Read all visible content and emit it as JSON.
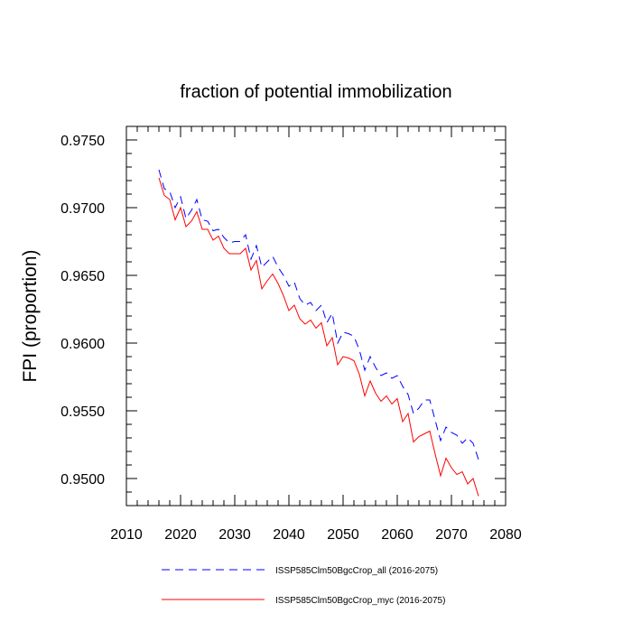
{
  "chart_data": {
    "type": "line",
    "title": "fraction of potential immobilization",
    "xlabel": "",
    "ylabel": "FPI  (proportion)",
    "xlim": [
      2010,
      2080
    ],
    "ylim": [
      0.948,
      0.976
    ],
    "xticks": [
      2010,
      2020,
      2030,
      2040,
      2050,
      2060,
      2070,
      2080
    ],
    "xtick_labels": [
      "2010",
      "2020",
      "2030",
      "2040",
      "2050",
      "2060",
      "2070",
      "2080"
    ],
    "yticks": [
      0.95,
      0.955,
      0.96,
      0.965,
      0.97,
      0.975
    ],
    "ytick_labels": [
      "0.9500",
      "0.9550",
      "0.9600",
      "0.9650",
      "0.9700",
      "0.9750"
    ],
    "grid": false,
    "legend_position": "bottom",
    "x": [
      2016,
      2017,
      2018,
      2019,
      2020,
      2021,
      2022,
      2023,
      2024,
      2025,
      2026,
      2027,
      2028,
      2029,
      2030,
      2031,
      2032,
      2033,
      2034,
      2035,
      2036,
      2037,
      2038,
      2039,
      2040,
      2041,
      2042,
      2043,
      2044,
      2045,
      2046,
      2047,
      2048,
      2049,
      2050,
      2051,
      2052,
      2053,
      2054,
      2055,
      2056,
      2057,
      2058,
      2059,
      2060,
      2061,
      2062,
      2063,
      2064,
      2065,
      2066,
      2067,
      2068,
      2069,
      2070,
      2071,
      2072,
      2073,
      2074,
      2075
    ],
    "series": [
      {
        "name": "ISSP585Clm50BgcCrop_all (2016-2075)",
        "color": "#0000ff",
        "dash": "dashed",
        "values": [
          0.9728,
          0.9714,
          0.9712,
          0.97,
          0.9708,
          0.9692,
          0.9698,
          0.9706,
          0.9691,
          0.969,
          0.9683,
          0.9684,
          0.9678,
          0.9674,
          0.9675,
          0.9675,
          0.968,
          0.9662,
          0.9672,
          0.9656,
          0.966,
          0.9664,
          0.9656,
          0.965,
          0.9642,
          0.9645,
          0.9633,
          0.9628,
          0.963,
          0.9624,
          0.9628,
          0.9615,
          0.9622,
          0.96,
          0.9608,
          0.9607,
          0.9605,
          0.9595,
          0.958,
          0.959,
          0.9582,
          0.9576,
          0.9578,
          0.9574,
          0.9576,
          0.9568,
          0.9562,
          0.9548,
          0.9552,
          0.9558,
          0.9558,
          0.9543,
          0.9528,
          0.9538,
          0.9534,
          0.9532,
          0.9526,
          0.953,
          0.9526,
          0.9514
        ]
      },
      {
        "name": "ISSP585Clm50BgcCrop_myc (2016-2075)",
        "color": "#ff0000",
        "dash": "solid",
        "values": [
          0.9722,
          0.9709,
          0.9706,
          0.9691,
          0.97,
          0.9686,
          0.969,
          0.9697,
          0.9684,
          0.9684,
          0.9676,
          0.9679,
          0.967,
          0.9666,
          0.9666,
          0.9666,
          0.967,
          0.9654,
          0.9661,
          0.964,
          0.9646,
          0.9651,
          0.9644,
          0.9635,
          0.9624,
          0.9628,
          0.9618,
          0.9614,
          0.9617,
          0.9611,
          0.9615,
          0.9598,
          0.9604,
          0.9584,
          0.959,
          0.9589,
          0.9587,
          0.9577,
          0.9561,
          0.9572,
          0.9563,
          0.9557,
          0.9561,
          0.9555,
          0.9559,
          0.9542,
          0.9548,
          0.9527,
          0.9531,
          0.9533,
          0.9535,
          0.9518,
          0.9502,
          0.9515,
          0.9508,
          0.9503,
          0.9505,
          0.9496,
          0.95,
          0.9487
        ]
      }
    ]
  }
}
